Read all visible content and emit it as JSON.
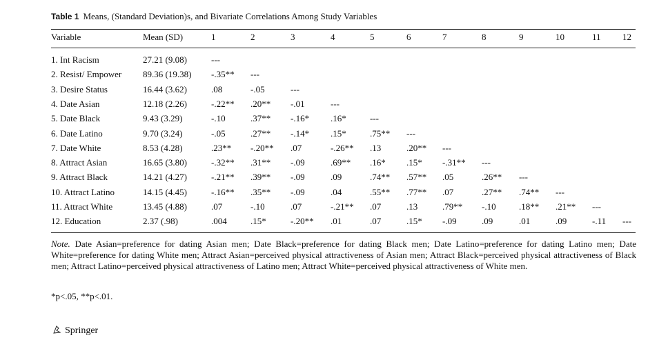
{
  "title": {
    "label": "Table 1",
    "caption": "Means, (Standard Deviation)s, and Bivariate Correlations Among Study Variables"
  },
  "table": {
    "header": [
      "Variable",
      "Mean (SD)",
      "1",
      "2",
      "3",
      "4",
      "5",
      "6",
      "7",
      "8",
      "9",
      "10",
      "11",
      "12"
    ],
    "rows": [
      [
        "1. Int Racism",
        "27.21 (9.08)",
        "---"
      ],
      [
        "2. Resist/ Empower",
        "89.36 (19.38)",
        "-.35**",
        "---"
      ],
      [
        "3. Desire Status",
        "16.44 (3.62)",
        ".08",
        "-.05",
        "---"
      ],
      [
        "4. Date Asian",
        "12.18 (2.26)",
        "-.22**",
        ".20**",
        "-.01",
        "---"
      ],
      [
        "5. Date Black",
        "9.43 (3.29)",
        "-.10",
        ".37**",
        "-.16*",
        ".16*",
        "---"
      ],
      [
        "6. Date Latino",
        "9.70 (3.24)",
        "-.05",
        ".27**",
        "-.14*",
        ".15*",
        ".75**",
        "---"
      ],
      [
        "7. Date White",
        "8.53 (4.28)",
        ".23**",
        "-.20**",
        ".07",
        "-.26**",
        ".13",
        ".20**",
        "---"
      ],
      [
        "8. Attract Asian",
        "16.65 (3.80)",
        "-.32**",
        ".31**",
        "-.09",
        ".69**",
        ".16*",
        ".15*",
        "-.31**",
        "---"
      ],
      [
        "9. Attract Black",
        "14.21 (4.27)",
        "-.21**",
        ".39**",
        "-.09",
        ".09",
        ".74**",
        ".57**",
        ".05",
        ".26**",
        "---"
      ],
      [
        "10. Attract Latino",
        "14.15 (4.45)",
        "-.16**",
        ".35**",
        "-.09",
        ".04",
        ".55**",
        ".77**",
        ".07",
        ".27**",
        ".74**",
        "---"
      ],
      [
        "11. Attract White",
        "13.45 (4.88)",
        ".07",
        "-.10",
        ".07",
        "-.21**",
        ".07",
        ".13",
        ".79**",
        "-.10",
        ".18**",
        ".21**",
        "---"
      ],
      [
        "12. Education",
        "2.37 (.98)",
        ".004",
        ".15*",
        "-.20**",
        ".01",
        ".07",
        ".15*",
        "-.09",
        ".09",
        ".01",
        ".09",
        "-.11",
        "---"
      ]
    ]
  },
  "note": {
    "label": "Note.",
    "text": " Date Asian=preference for dating Asian men; Date Black=preference for dating Black men; Date Latino=preference for dating Latino men; Date White=preference for dating White men; Attract Asian=perceived physical attractiveness of Asian men; Attract Black=perceived physical attractiveness of Black men; Attract Latino=perceived physical attractiveness of Latino men; Attract White=perceived physical attractiveness of White men."
  },
  "footnote": "*p<.05, **p<.01.",
  "publisher": "Springer"
}
